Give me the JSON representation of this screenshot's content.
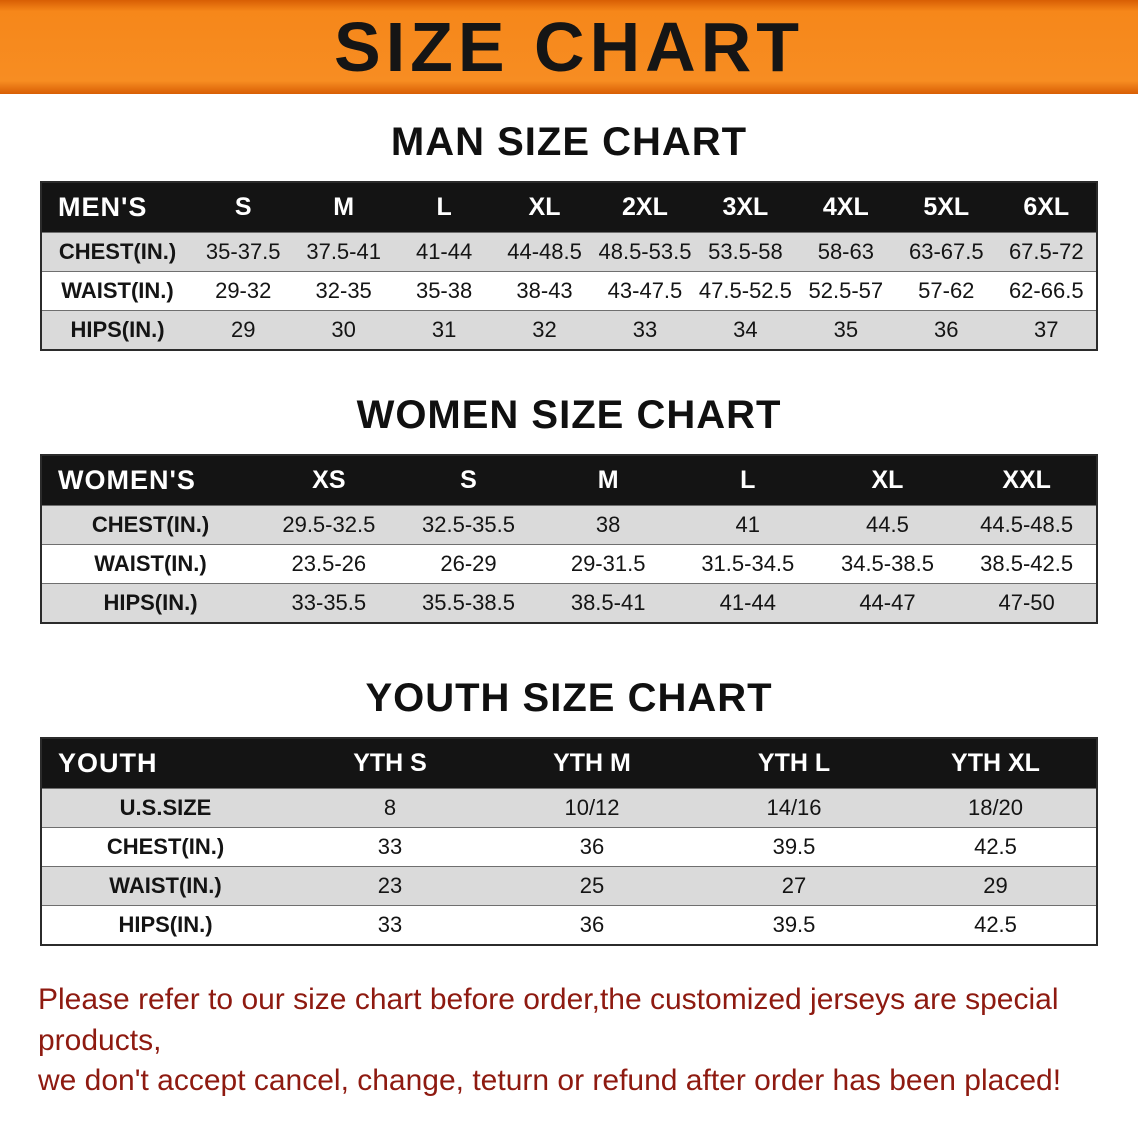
{
  "banner": {
    "title": "SIZE CHART"
  },
  "colors": {
    "banner_orange": "#F6871A",
    "banner_edge_dark": "#D85E04",
    "table_header_bg": "#141414",
    "table_header_text": "#FFFFFF",
    "row_stripe_gray": "#DADADA",
    "footer_red": "#8E1A10"
  },
  "chart_data": [
    {
      "type": "table",
      "title": "MAN SIZE CHART",
      "columns": [
        "MEN'S",
        "S",
        "M",
        "L",
        "XL",
        "2XL",
        "3XL",
        "4XL",
        "5XL",
        "6XL"
      ],
      "rows": [
        [
          "CHEST(IN.)",
          "35-37.5",
          "37.5-41",
          "41-44",
          "44-48.5",
          "48.5-53.5",
          "53.5-58",
          "58-63",
          "63-67.5",
          "67.5-72"
        ],
        [
          "WAIST(IN.)",
          "29-32",
          "32-35",
          "35-38",
          "38-43",
          "43-47.5",
          "47.5-52.5",
          "52.5-57",
          "57-62",
          "62-66.5"
        ],
        [
          "HIPS(IN.)",
          "29",
          "30",
          "31",
          "32",
          "33",
          "34",
          "35",
          "36",
          "37"
        ]
      ]
    },
    {
      "type": "table",
      "title": "WOMEN SIZE CHART",
      "columns": [
        "WOMEN'S",
        "XS",
        "S",
        "M",
        "L",
        "XL",
        "XXL"
      ],
      "rows": [
        [
          "CHEST(IN.)",
          "29.5-32.5",
          "32.5-35.5",
          "38",
          "41",
          "44.5",
          "44.5-48.5"
        ],
        [
          "WAIST(IN.)",
          "23.5-26",
          "26-29",
          "29-31.5",
          "31.5-34.5",
          "34.5-38.5",
          "38.5-42.5"
        ],
        [
          "HIPS(IN.)",
          "33-35.5",
          "35.5-38.5",
          "38.5-41",
          "41-44",
          "44-47",
          "47-50"
        ]
      ]
    },
    {
      "type": "table",
      "title": "YOUTH SIZE CHART",
      "columns": [
        "YOUTH",
        "YTH S",
        "YTH M",
        "YTH L",
        "YTH XL"
      ],
      "rows": [
        [
          "U.S.SIZE",
          "8",
          "10/12",
          "14/16",
          "18/20"
        ],
        [
          "CHEST(IN.)",
          "33",
          "36",
          "39.5",
          "42.5"
        ],
        [
          "WAIST(IN.)",
          "23",
          "25",
          "27",
          "29"
        ],
        [
          "HIPS(IN.)",
          "33",
          "36",
          "39.5",
          "42.5"
        ]
      ]
    }
  ],
  "footer": {
    "line1": "Please refer to our size chart before order,the customized jerseys are special products,",
    "line2": "we don't accept cancel, change, teturn or refund after order has been placed!"
  }
}
